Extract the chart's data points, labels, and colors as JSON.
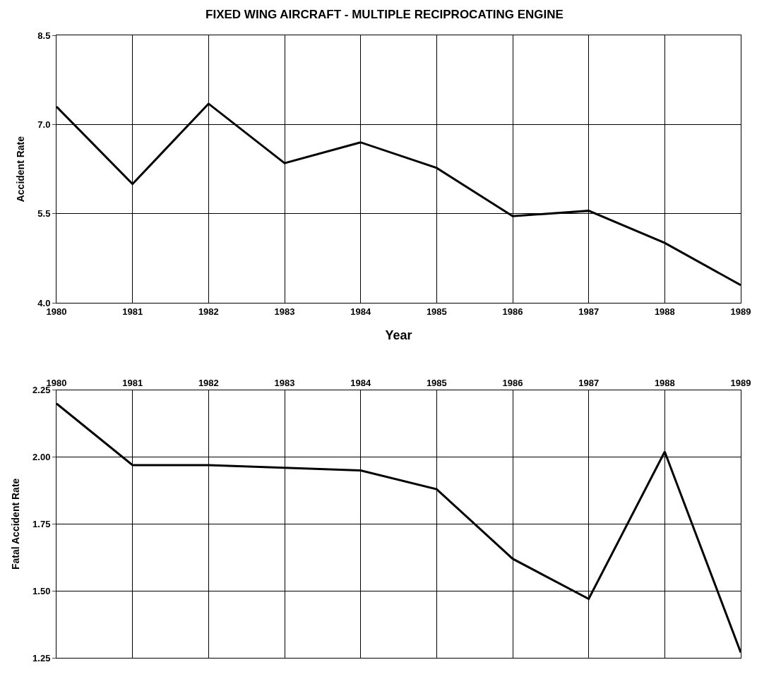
{
  "chart_data": [
    {
      "type": "line",
      "title": "FIXED WING AIRCRAFT - MULTIPLE RECIPROCATING ENGINE",
      "xlabel": "Year",
      "ylabel": "Accident Rate",
      "categories": [
        "1980",
        "1981",
        "1982",
        "1983",
        "1984",
        "1985",
        "1986",
        "1987",
        "1988",
        "1989"
      ],
      "series": [
        {
          "color": "#000000",
          "values": [
            7.3,
            6.0,
            7.35,
            6.35,
            6.7,
            6.27,
            5.46,
            5.55,
            5.01,
            4.3
          ]
        }
      ],
      "ylim": [
        4.0,
        8.5
      ],
      "yticks": [
        {
          "value": 4.0,
          "label": "4.0"
        },
        {
          "value": 5.5,
          "label": "5.5"
        },
        {
          "value": 7.0,
          "label": "7.0"
        },
        {
          "value": 8.5,
          "label": "8.5"
        }
      ],
      "grid": true
    },
    {
      "type": "line",
      "ylabel": "Fatal Accident Rate",
      "categories": [
        "1980",
        "1981",
        "1982",
        "1983",
        "1984",
        "1985",
        "1986",
        "1987",
        "1988",
        "1989"
      ],
      "series": [
        {
          "color": "#000000",
          "values": [
            2.2,
            1.97,
            1.97,
            1.96,
            1.95,
            1.88,
            1.62,
            1.47,
            2.02,
            1.27
          ]
        }
      ],
      "ylim": [
        1.25,
        2.25
      ],
      "yticks": [
        1.25,
        {
          "value": 1.5,
          "label": "1.50"
        },
        1.75,
        {
          "value": 2.0,
          "label": "2.00"
        },
        2.25
      ],
      "grid": true
    }
  ]
}
